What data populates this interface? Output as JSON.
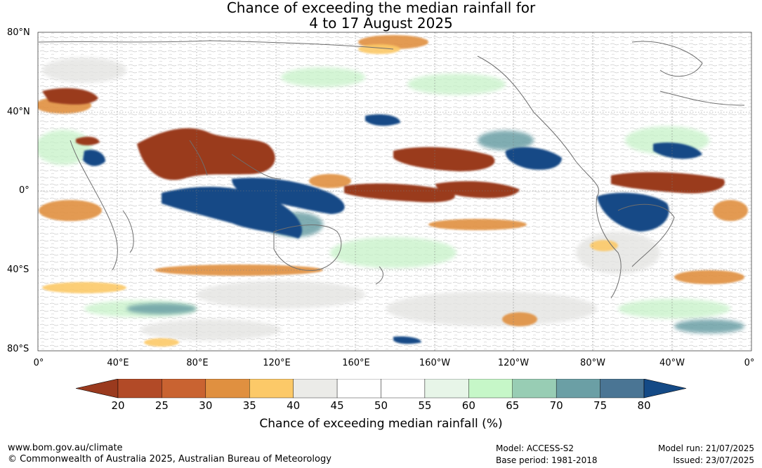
{
  "title": {
    "line1": "Chance of exceeding the median rainfall for",
    "line2": "4 to 17 August 2025"
  },
  "lat_labels": [
    "80°N",
    "40°N",
    "0°",
    "40°S",
    "80°S"
  ],
  "lon_labels": [
    "0°",
    "40°E",
    "80°E",
    "120°E",
    "160°E",
    "160°W",
    "120°W",
    "80°W",
    "40°W",
    "0°"
  ],
  "colorbar": {
    "ticks": [
      "20",
      "25",
      "30",
      "35",
      "40",
      "45",
      "50",
      "55",
      "60",
      "65",
      "70",
      "75",
      "80"
    ],
    "colors": [
      "#9a3a1e",
      "#b24a27",
      "#c96331",
      "#e09040",
      "#fcc968",
      "#ebebe8",
      "#ffffff",
      "#ffffff",
      "#e7f5e8",
      "#c6f7c8",
      "#98cdb4",
      "#6b9fa5",
      "#4a7594",
      "#144a86"
    ],
    "label": "Chance of exceeding median rainfall (%)"
  },
  "footer": {
    "url": "www.bom.gov.au/climate",
    "copyright": "© Commonwealth of Australia 2025, Australian Bureau of Meteorology",
    "model": "Model: ACCESS-S2",
    "base_period": "Base period: 1981-2018",
    "model_run": "Model run: 21/07/2025",
    "issued": "Issued: 23/07/2025"
  }
}
